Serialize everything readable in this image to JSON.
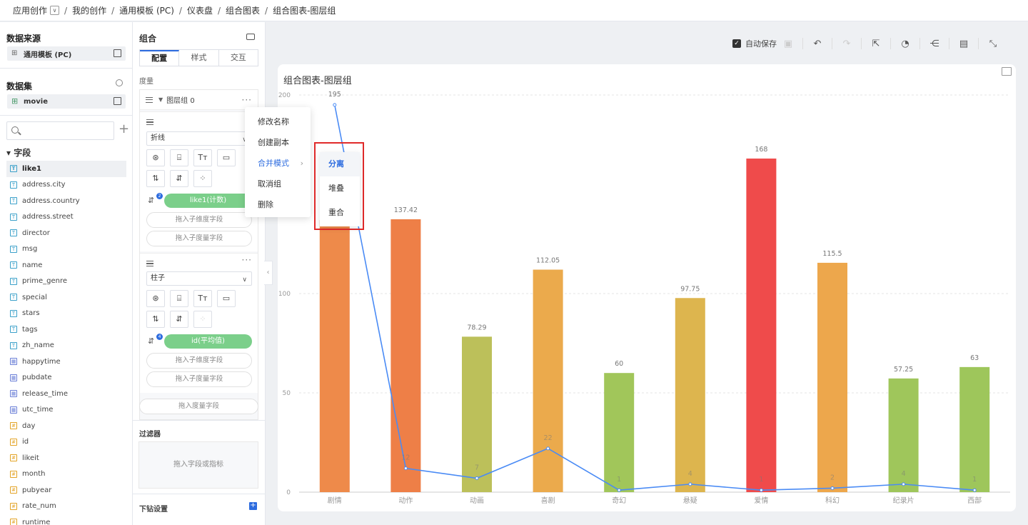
{
  "breadcrumb": [
    "应用创作",
    "我的创作",
    "通用模板 (PC)",
    "仪表盘",
    "组合图表",
    "组合图表-图层组"
  ],
  "left": {
    "source_title": "数据来源",
    "source_name": "通用模板 (PC)",
    "dataset_title": "数据集",
    "dataset_name": "movie",
    "fields_title": "字段",
    "fields": [
      {
        "name": "like1",
        "type": "text"
      },
      {
        "name": "address.city",
        "type": "text"
      },
      {
        "name": "address.country",
        "type": "text"
      },
      {
        "name": "address.street",
        "type": "text"
      },
      {
        "name": "director",
        "type": "text"
      },
      {
        "name": "msg",
        "type": "text"
      },
      {
        "name": "name",
        "type": "text"
      },
      {
        "name": "prime_genre",
        "type": "text"
      },
      {
        "name": "special",
        "type": "text"
      },
      {
        "name": "stars",
        "type": "text"
      },
      {
        "name": "tags",
        "type": "text"
      },
      {
        "name": "zh_name",
        "type": "text"
      },
      {
        "name": "happytime",
        "type": "date"
      },
      {
        "name": "pubdate",
        "type": "date"
      },
      {
        "name": "release_time",
        "type": "date"
      },
      {
        "name": "utc_time",
        "type": "date"
      },
      {
        "name": "day",
        "type": "num"
      },
      {
        "name": "id",
        "type": "num"
      },
      {
        "name": "likeit",
        "type": "num"
      },
      {
        "name": "month",
        "type": "num"
      },
      {
        "name": "pubyear",
        "type": "num"
      },
      {
        "name": "rate_num",
        "type": "num"
      },
      {
        "name": "runtime",
        "type": "num"
      }
    ]
  },
  "config": {
    "title": "组合",
    "tabs": [
      "配置",
      "样式",
      "交互"
    ],
    "measure_label": "度量",
    "layer_group_name": "图层组 0",
    "layer1_type": "折线",
    "layer1_pill": "like1(计数)",
    "layer1_badge": "2",
    "layer2_type": "柱子",
    "layer2_pill": "id(平均值)",
    "layer2_badge": "4",
    "drop_dim": "拖入子维度字段",
    "drop_measure": "拖入子度量字段",
    "drop_measure_field": "拖入度量字段",
    "filter_label": "过滤器",
    "filter_drop": "拖入字段或指标",
    "drill_label": "下钻设置"
  },
  "context_menu": {
    "items": [
      "修改名称",
      "创建副本",
      "合并模式",
      "取消组",
      "删除"
    ],
    "submenu": [
      "分离",
      "堆叠",
      "重合"
    ],
    "selected": "分离"
  },
  "toolbar": {
    "autosave_label": "自动保存",
    "autosave_checked": true
  },
  "chart_title": "组合图表-图层组",
  "chart_data": {
    "type": "bar+line",
    "categories": [
      "剧情",
      "动作",
      "动画",
      "喜剧",
      "奇幻",
      "悬疑",
      "爱情",
      "科幻",
      "纪录片",
      "西部"
    ],
    "series": [
      {
        "name": "id(平均值)",
        "type": "bar",
        "values": [
          null,
          137.42,
          78.29,
          112.05,
          60,
          97.75,
          168,
          115.5,
          57.25,
          63
        ],
        "colors": [
          "#ee8a4a",
          "#ee7f47",
          "#bcc05a",
          "#ebaa4c",
          "#a1c65a",
          "#ddb54e",
          "#ef4b4b",
          "#eda74c",
          "#9fc65b",
          "#9ec65b"
        ]
      },
      {
        "name": "like1(计数)",
        "type": "line",
        "values": [
          195,
          12,
          7,
          22,
          1,
          4,
          1,
          2,
          4,
          1
        ],
        "color": "#4a8bf5"
      }
    ],
    "y_ticks": [
      0,
      50,
      100,
      200
    ],
    "ylim": [
      0,
      200
    ],
    "grid": true
  }
}
